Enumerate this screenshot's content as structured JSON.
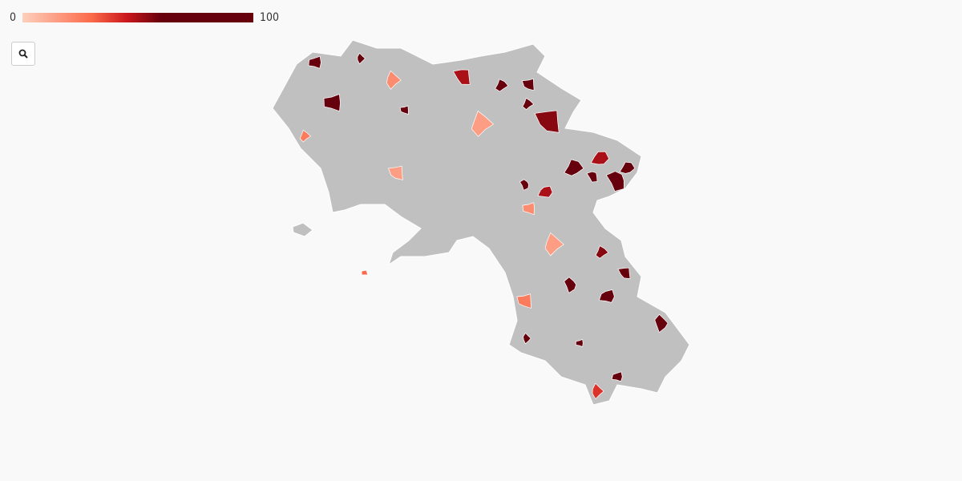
{
  "legend": {
    "min": 0,
    "max": 100
  },
  "regions": {
    "values": [
      60,
      100,
      60,
      20,
      90,
      15,
      100,
      100,
      55,
      60,
      50,
      100,
      100,
      100,
      60,
      50,
      70,
      50,
      100,
      100,
      70,
      90,
      100,
      90,
      40,
      20,
      15,
      25,
      25,
      15,
      55,
      60
    ]
  }
}
